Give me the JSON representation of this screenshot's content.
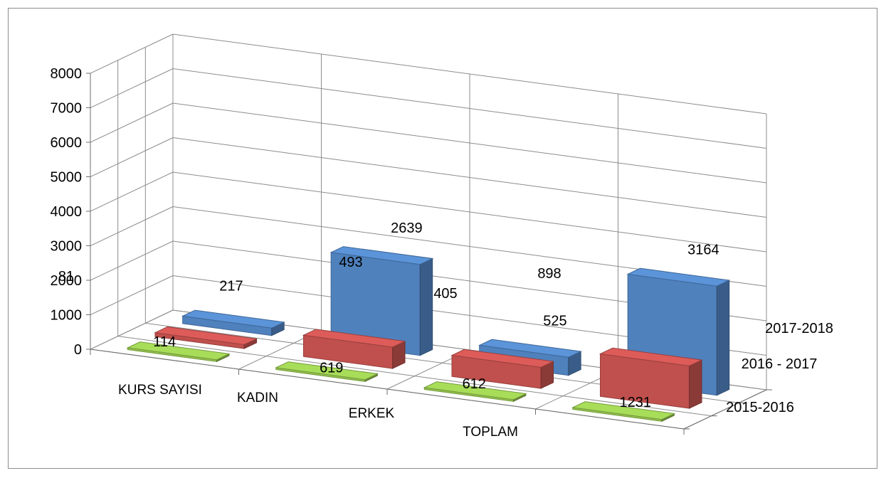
{
  "chart_data": {
    "type": "bar",
    "subtype": "3d-column",
    "categories": [
      "KURS SAYISI",
      "KADIN",
      "ERKEK",
      "TOPLAM"
    ],
    "series": [
      {
        "name": "2015-2016",
        "values": [
          null,
          null,
          null,
          null
        ],
        "labels": [
          "",
          "",
          "",
          ""
        ]
      },
      {
        "name": "2016 - 2017",
        "values": [
          114,
          619,
          612,
          1231
        ],
        "labels": [
          "114",
          "619",
          "612",
          "1231"
        ]
      },
      {
        "name": "2017-2018",
        "values": [
          217,
          2639,
          525,
          3164
        ],
        "labels": [
          "217",
          "2639",
          "525",
          "3164"
        ]
      }
    ],
    "floating_labels": [
      "81",
      "493",
      "405",
      "898"
    ],
    "yticks": [
      "0",
      "1000",
      "2000",
      "3000",
      "4000",
      "5000",
      "6000",
      "7000",
      "8000"
    ],
    "ylim": [
      0,
      8000
    ],
    "grid": true,
    "legend": "none",
    "colors": {
      "2015-2016": "#92c04d",
      "2016 - 2017": "#c0504d",
      "2017-2018": "#4f81bd"
    }
  }
}
